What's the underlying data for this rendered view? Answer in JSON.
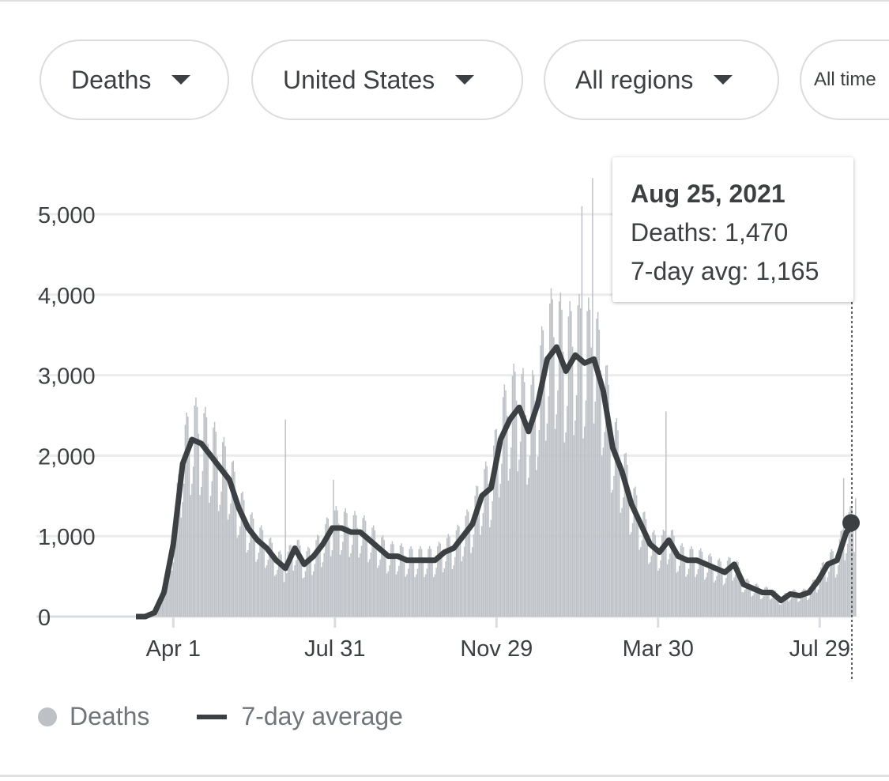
{
  "filters": [
    {
      "label": "Deaths"
    },
    {
      "label": "United States"
    },
    {
      "label": "All regions"
    },
    {
      "label": "All time"
    }
  ],
  "tooltip": {
    "date": "Aug 25, 2021",
    "deaths": "Deaths: 1,470",
    "avg": "7-day avg: 1,165"
  },
  "legend": {
    "bars": "Deaths",
    "line": "7-day average"
  },
  "colors": {
    "bars": "#bdc1c6",
    "line": "#3c4043",
    "grid": "#ebebeb"
  },
  "chart_data": {
    "type": "bar+line",
    "title": "",
    "xlabel": "",
    "ylabel": "",
    "ylim": [
      0,
      5500
    ],
    "yticks": [
      0,
      1000,
      2000,
      3000,
      4000,
      5000
    ],
    "ytick_labels": [
      "0",
      "1,000",
      "2,000",
      "3,000",
      "4,000",
      "5,000"
    ],
    "xtick_labels": [
      "Apr 1",
      "Jul 31",
      "Nov 29",
      "Mar 30",
      "Jul 29"
    ],
    "xtick_days": [
      28,
      149,
      270,
      391,
      512
    ],
    "start_date": "Mar 4, 2020",
    "end_date": "Aug 25, 2021",
    "grid": true,
    "legend_position": "bottom-left",
    "series": [
      {
        "name": "7-day average",
        "kind": "line",
        "interval_days": 7,
        "values": [
          0,
          0,
          50,
          300,
          900,
          1900,
          2200,
          2150,
          2000,
          1850,
          1700,
          1350,
          1100,
          950,
          850,
          700,
          600,
          850,
          650,
          750,
          900,
          1100,
          1100,
          1050,
          1050,
          950,
          850,
          750,
          750,
          700,
          700,
          700,
          700,
          800,
          850,
          1000,
          1150,
          1500,
          1600,
          2200,
          2450,
          2600,
          2300,
          2650,
          3200,
          3350,
          3050,
          3250,
          3150,
          3200,
          2800,
          2100,
          1800,
          1400,
          1150,
          900,
          800,
          950,
          750,
          700,
          700,
          650,
          600,
          550,
          650,
          400,
          350,
          300,
          300,
          200,
          280,
          260,
          300,
          450,
          650,
          700,
          1050,
          1165
        ]
      },
      {
        "name": "Deaths",
        "kind": "bar",
        "interval_days": 1,
        "derived_from": "7-day average x weekday pattern",
        "weekday_pattern": [
          0.75,
          0.85,
          1.2,
          1.25,
          1.2,
          1.05,
          0.7
        ],
        "spikes": [
          {
            "day": 112,
            "value": 2450
          },
          {
            "day": 148,
            "value": 1700
          },
          {
            "day": 334,
            "value": 5100
          },
          {
            "day": 342,
            "value": 5450
          },
          {
            "day": 397,
            "value": 2550
          },
          {
            "day": 530,
            "value": 1720
          },
          {
            "day": 539,
            "value": 1470
          }
        ]
      }
    ],
    "highlight": {
      "date": "Aug 25, 2021",
      "deaths": 1470,
      "avg": 1165
    }
  }
}
